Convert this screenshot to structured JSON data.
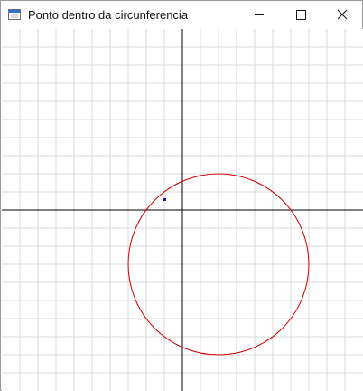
{
  "window": {
    "title": "Ponto dentro da circunferencia",
    "icons": {
      "app": "window-app-icon",
      "minimize": "minimize-icon",
      "maximize": "maximize-icon",
      "close": "close-icon"
    }
  },
  "canvas": {
    "grid_color": "#d9d9d9",
    "axis_color": "#000000",
    "circle_color": "#d20000",
    "point_color": "#1a1aa8"
  }
}
